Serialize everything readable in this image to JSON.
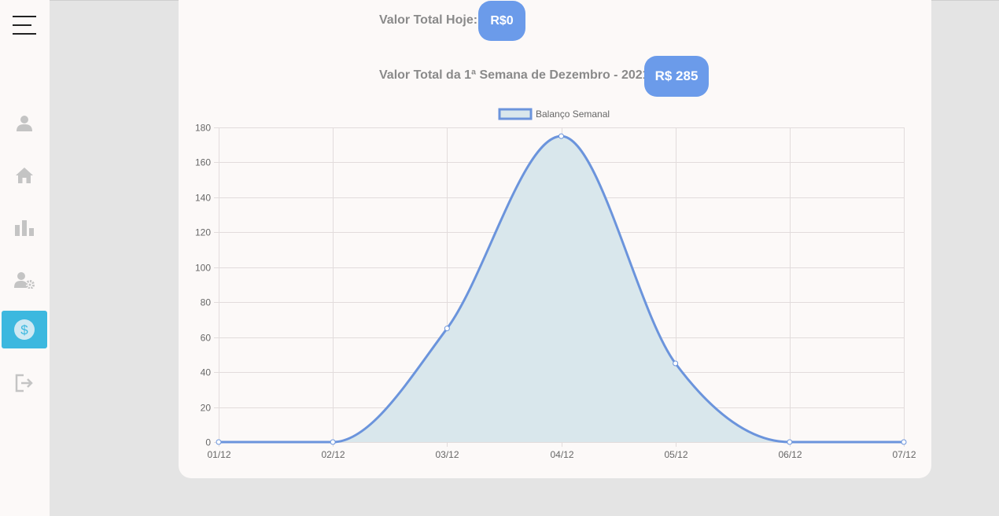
{
  "sidebar": {
    "menu_icon": "hamburger-icon",
    "items": [
      {
        "icon": "user-icon",
        "active": false
      },
      {
        "icon": "home-icon",
        "active": false
      },
      {
        "icon": "bar-chart-icon",
        "active": false
      },
      {
        "icon": "user-settings-icon",
        "active": false
      },
      {
        "icon": "dollar-icon",
        "active": true
      },
      {
        "icon": "logout-icon",
        "active": false
      }
    ],
    "active_color": "#3cb8df",
    "icon_color": "#c4c4c4"
  },
  "summary": {
    "today_label": "Valor Total Hoje:",
    "today_value": "R$0",
    "week_label": "Valor Total da 1ª Semana de Dezembro - 2021",
    "week_value": "R$ 285",
    "pill_color": "#6b9bea"
  },
  "chart_data": {
    "type": "line",
    "categories": [
      "01/12",
      "02/12",
      "03/12",
      "04/12",
      "05/12",
      "06/12",
      "07/12"
    ],
    "series": [
      {
        "name": "Balanço Semanal",
        "values": [
          0,
          0,
          65,
          175,
          45,
          0,
          0
        ],
        "color": "#6b94dc",
        "fill": "#d9e7ec"
      }
    ],
    "ylim": [
      0,
      180
    ],
    "yticks": [
      0,
      20,
      40,
      60,
      80,
      100,
      120,
      140,
      160,
      180
    ],
    "grid": true,
    "legend": "top-center",
    "smooth": true,
    "area": true
  }
}
